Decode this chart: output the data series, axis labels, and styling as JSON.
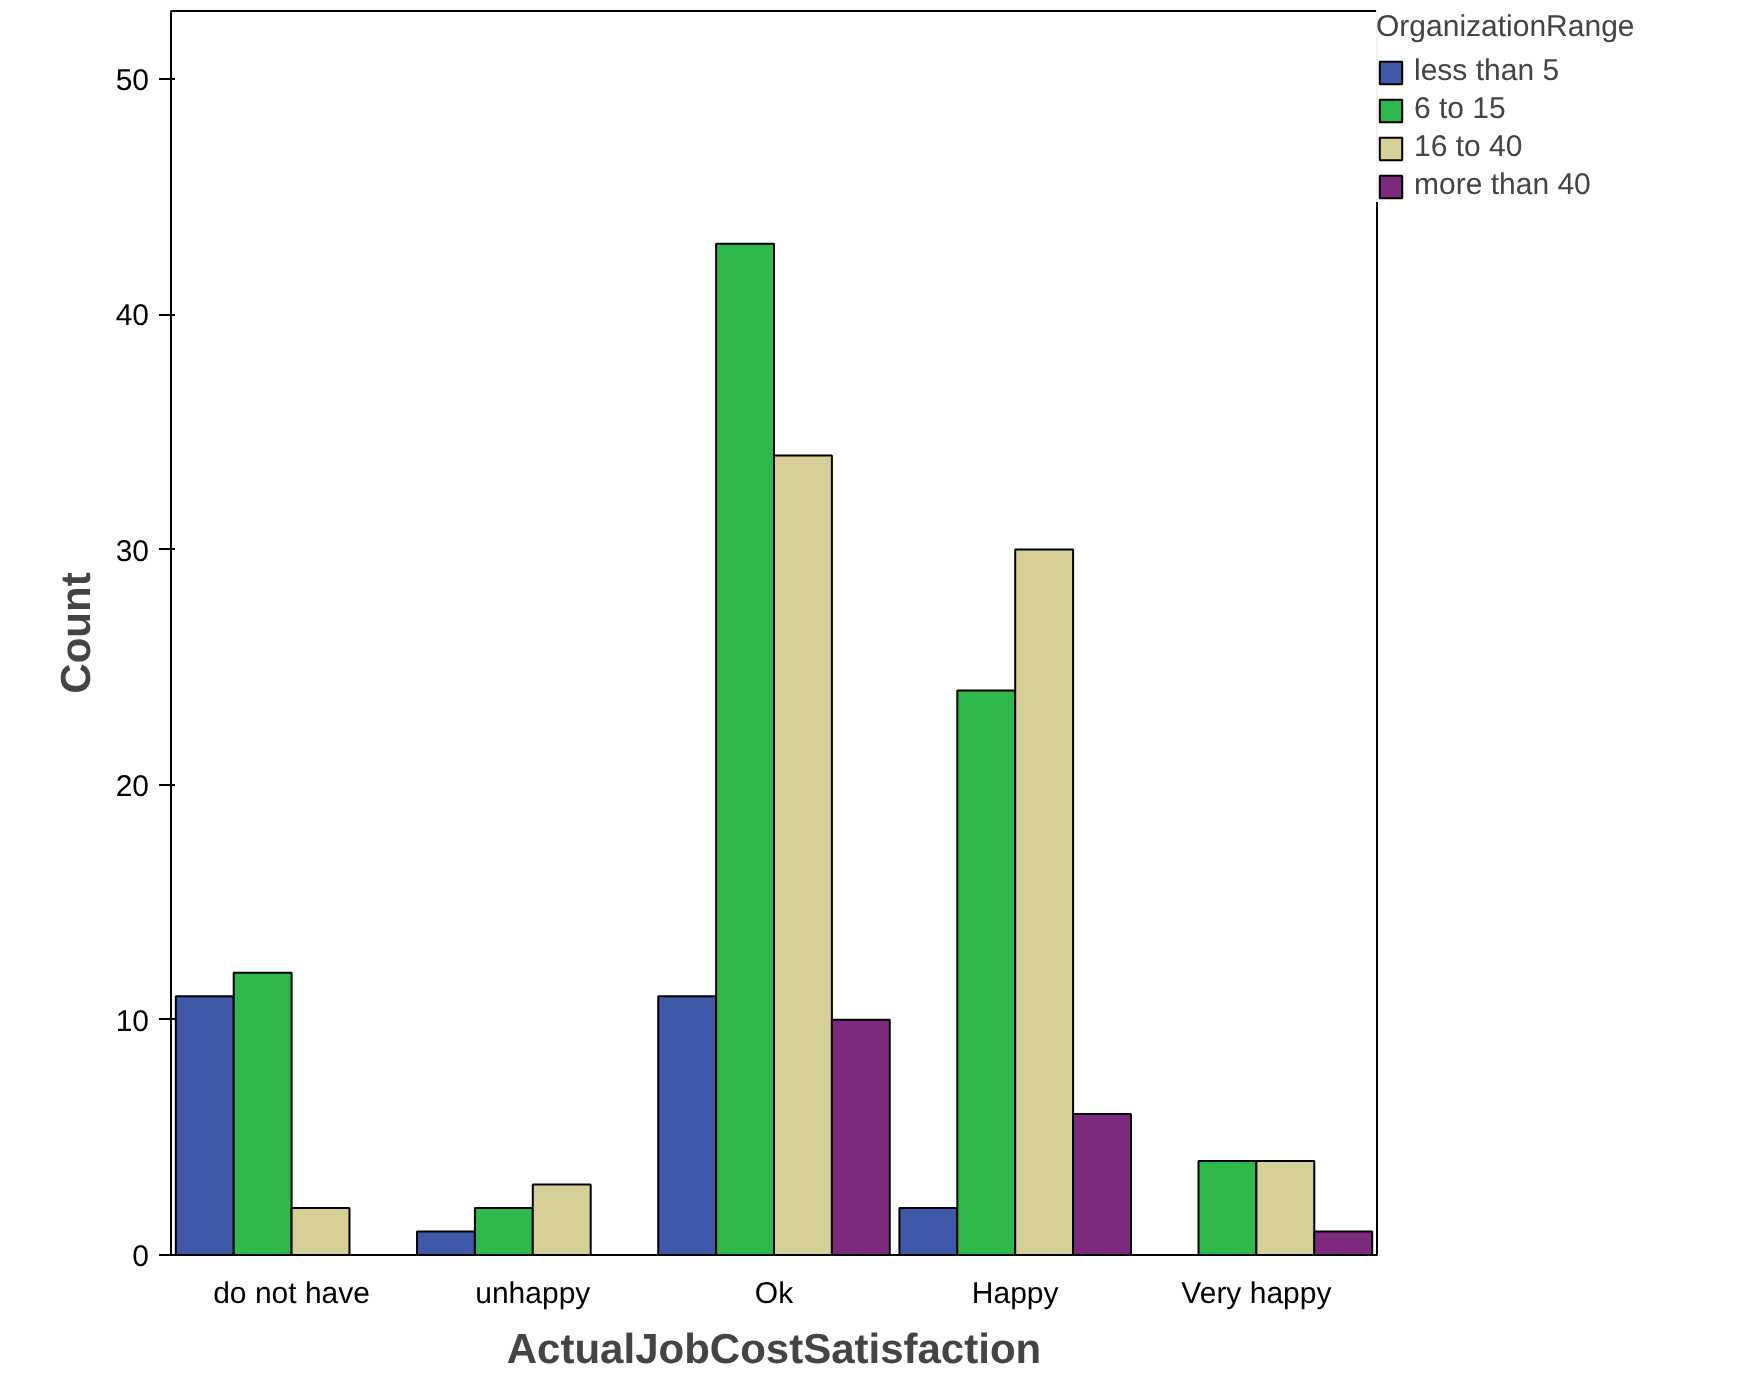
{
  "chart_data": {
    "type": "bar",
    "xlabel": "ActualJobCostSatisfaction",
    "ylabel": "Count",
    "legend_title": "OrganizationRange",
    "legend": "top right",
    "grid": false,
    "categories": [
      "do not have",
      "unhappy",
      "Ok",
      "Happy",
      "Very happy"
    ],
    "series": [
      {
        "name": "less than 5",
        "color": "#3f58a8",
        "values": [
          11,
          1,
          11,
          2,
          null
        ]
      },
      {
        "name": "6 to 15",
        "color": "#2fb84b",
        "values": [
          12,
          2,
          43,
          24,
          4
        ]
      },
      {
        "name": "16 to 40",
        "color": "#d6cf98",
        "values": [
          2,
          3,
          34,
          30,
          4
        ]
      },
      {
        "name": "more than 40",
        "color": "#7d2a7e",
        "values": [
          null,
          null,
          10,
          6,
          1
        ]
      }
    ],
    "ylim": [
      0,
      52.9
    ],
    "yticks": [
      0,
      10,
      20,
      30,
      40,
      50
    ]
  }
}
